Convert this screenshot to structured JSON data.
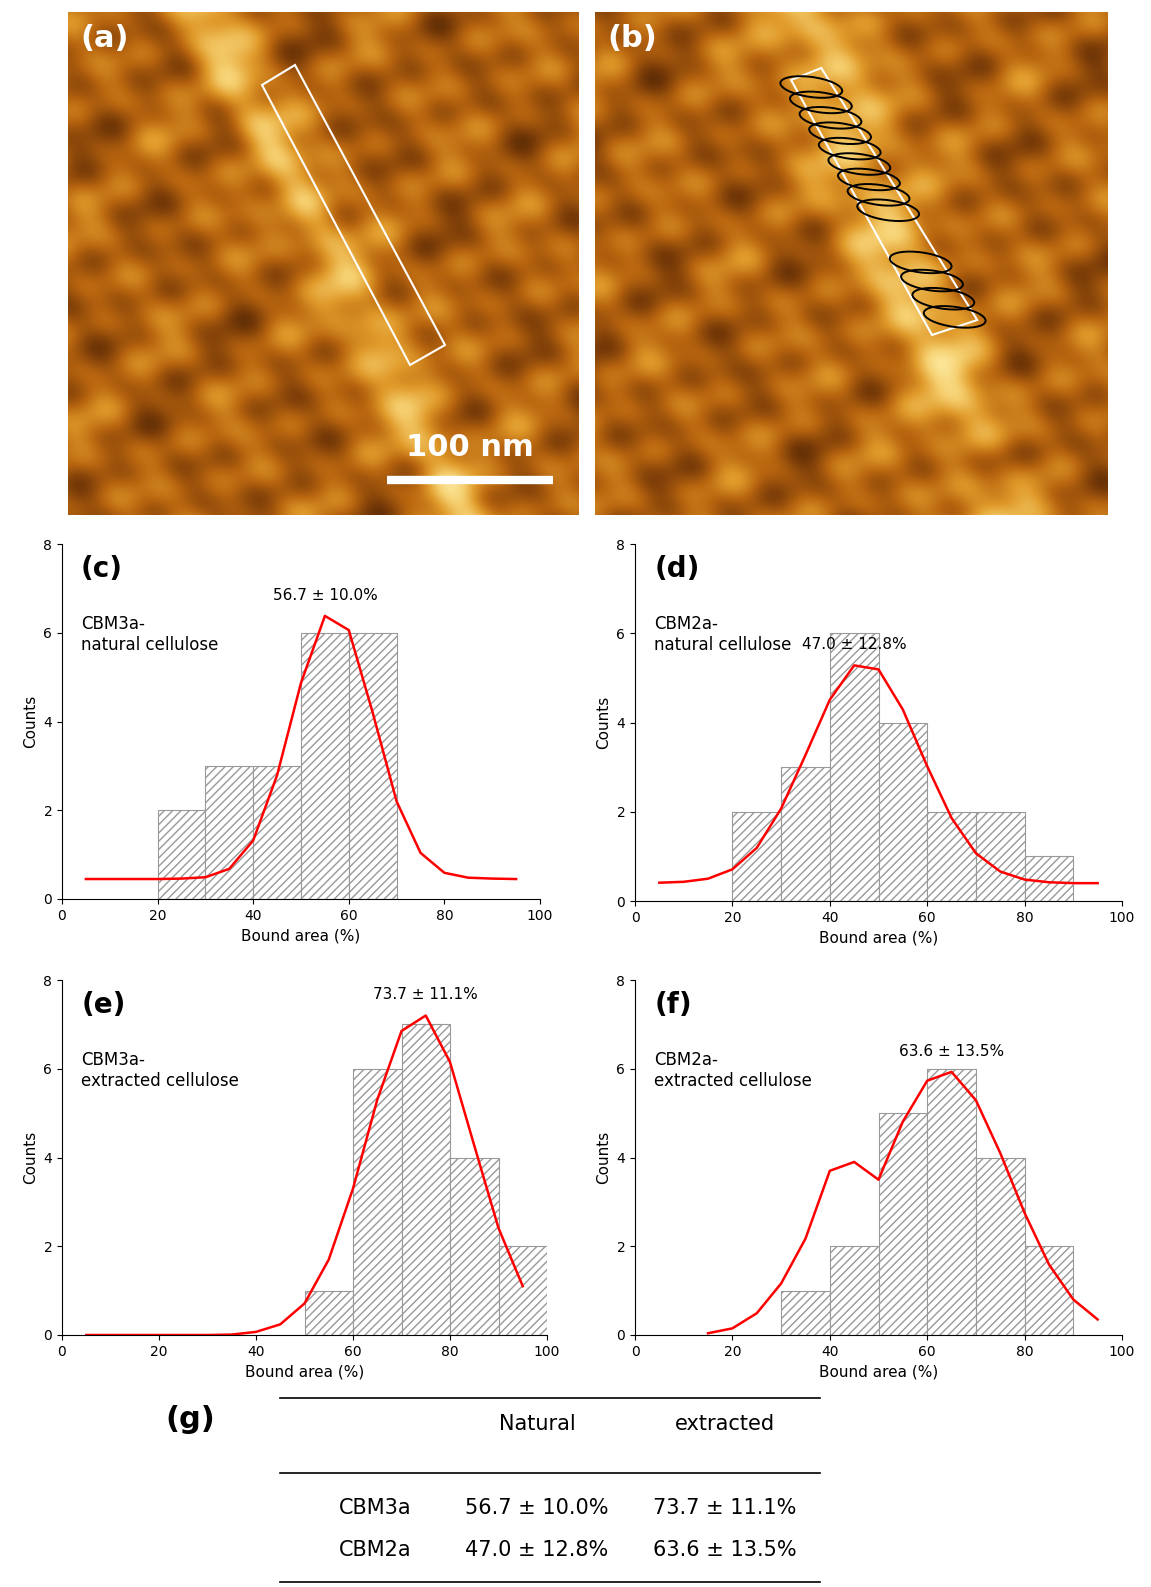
{
  "images": [
    {
      "label": "(a)",
      "scale_bar": "100 nm"
    },
    {
      "label": "(b)"
    }
  ],
  "chart_data": [
    {
      "type": "histogram",
      "panel": "(c)",
      "title": "CBM3a-\nnatural cellulose",
      "xlabel": "Bound area (%)",
      "ylabel": "Counts",
      "color": "#999999",
      "bins": [
        20,
        30,
        40,
        50,
        60,
        70
      ],
      "counts": [
        2,
        3,
        3,
        6,
        6
      ],
      "fit": {
        "color": "#ff0000",
        "x": [
          5,
          10,
          15,
          20,
          25,
          30,
          35,
          40,
          45,
          50,
          55,
          60,
          65,
          70,
          75,
          80,
          85,
          90,
          95
        ],
        "values": [
          0.45,
          0.45,
          0.45,
          0.45,
          0.46,
          0.49,
          0.68,
          1.32,
          2.79,
          4.87,
          6.38,
          6.06,
          4.2,
          2.2,
          1.04,
          0.59,
          0.48,
          0.46,
          0.45
        ]
      },
      "annotation": "56.7 ± 10.0%",
      "xlim": [
        0,
        100
      ],
      "xticks": [
        0,
        20,
        40,
        60,
        80,
        100
      ],
      "ylim": [
        0,
        8
      ],
      "yticks": [
        0,
        2,
        4,
        6,
        8
      ]
    },
    {
      "type": "histogram",
      "panel": "(d)",
      "title": "CBM2a-\nnatural cellulose",
      "xlabel": "Bound area (%)",
      "ylabel": "Counts",
      "color": "#999999",
      "bins": [
        20,
        30,
        40,
        50,
        60,
        70,
        80,
        90
      ],
      "counts": [
        2,
        3,
        6,
        4,
        2,
        2,
        1
      ],
      "fit": {
        "color": "#ff0000",
        "x": [
          5,
          10,
          15,
          20,
          25,
          30,
          35,
          40,
          45,
          50,
          55,
          60,
          65,
          70,
          75,
          80,
          85,
          90,
          95
        ],
        "values": [
          0.41,
          0.43,
          0.5,
          0.71,
          1.19,
          2.07,
          3.27,
          4.51,
          5.28,
          5.19,
          4.29,
          3.02,
          1.86,
          1.07,
          0.66,
          0.48,
          0.42,
          0.4,
          0.4
        ]
      },
      "annotation": "47.0 ± 12.8%",
      "xlim": [
        0,
        100
      ],
      "xticks": [
        0,
        20,
        40,
        60,
        80,
        100
      ],
      "ylim": [
        0,
        8
      ],
      "yticks": [
        0,
        2,
        4,
        6,
        8
      ]
    },
    {
      "type": "histogram",
      "panel": "(e)",
      "title": "CBM3a-\nextracted cellulose",
      "xlabel": "Bound area (%)",
      "ylabel": "Counts",
      "color": "#999999",
      "bins": [
        50,
        60,
        70,
        80,
        90,
        100
      ],
      "counts": [
        1,
        6,
        7,
        4,
        2
      ],
      "fit": {
        "color": "#ff0000",
        "x": [
          5,
          10,
          15,
          20,
          25,
          30,
          35,
          40,
          45,
          50,
          55,
          60,
          65,
          70,
          75,
          80,
          85,
          90,
          95
        ],
        "values": [
          0,
          0,
          0,
          0,
          0,
          0,
          0.01,
          0.07,
          0.24,
          0.71,
          1.7,
          3.3,
          5.3,
          6.85,
          7.2,
          6.15,
          4.27,
          2.41,
          1.1
        ]
      },
      "annotation": "73.7 ± 11.1%",
      "xlim": [
        0,
        100
      ],
      "xticks": [
        0,
        20,
        40,
        60,
        80,
        100
      ],
      "ylim": [
        0,
        8
      ],
      "yticks": [
        0,
        2,
        4,
        6,
        8
      ]
    },
    {
      "type": "histogram",
      "panel": "(f)",
      "title": "CBM2a-\nextracted cellulose",
      "xlabel": "Bound area (%)",
      "ylabel": "Counts",
      "color": "#999999",
      "bins": [
        30,
        40,
        50,
        60,
        70,
        80,
        90
      ],
      "counts": [
        1,
        2,
        5,
        6,
        4,
        2
      ],
      "fit": {
        "color": "#ff0000",
        "x": [
          15,
          20,
          25,
          30,
          35,
          40,
          45,
          50,
          55,
          60,
          65,
          70,
          75,
          80,
          85,
          90,
          95
        ],
        "values": [
          0.04,
          0.15,
          0.49,
          1.16,
          2.17,
          3.7,
          3.9,
          3.5,
          4.81,
          5.73,
          5.93,
          5.29,
          4.1,
          2.75,
          1.59,
          0.8,
          0.35
        ]
      },
      "annotation": "63.6 ± 13.5%",
      "xlim": [
        0,
        100
      ],
      "xticks": [
        0,
        20,
        40,
        60,
        80,
        100
      ],
      "ylim": [
        0,
        8
      ],
      "yticks": [
        0,
        2,
        4,
        6,
        8
      ]
    }
  ],
  "table": {
    "label": "(g)",
    "header": [
      "Natural",
      "extracted"
    ],
    "rows": [
      [
        "CBM3a",
        "56.7 ± 10.0%",
        "73.7 ± 11.1%"
      ],
      [
        "CBM2a",
        "47.0 ± 12.8%",
        "63.6 ± 13.5%"
      ]
    ]
  }
}
